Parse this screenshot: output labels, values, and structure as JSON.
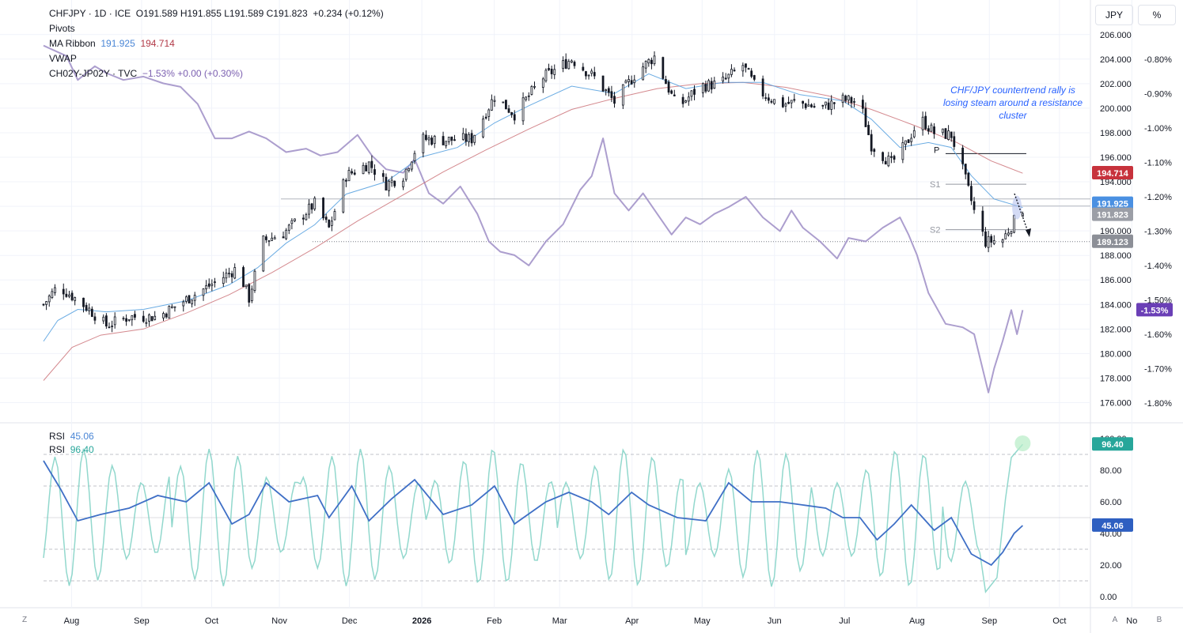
{
  "legend": {
    "symbol_line": "CHFJPY · 1D · ICE",
    "ohlc": "O191.589 H191.855 L191.589 C191.823",
    "change": "+0.234 (+0.12%)",
    "pivots": "Pivots",
    "ma_label": "MA Ribbon",
    "ma_fast": "191.925",
    "ma_slow": "194.714",
    "vwap": "VWAP",
    "spread_label": "CH02Y-JP02Y · TVC",
    "spread_vals": "−1.53%  +0.00 (+0.30%)"
  },
  "units": {
    "left": "JPY",
    "right": "%"
  },
  "annotation": "CHF/JPY countertrend rally is losing steam around a resistance cluster",
  "pivot_labels": {
    "p": "P",
    "s1": "S1",
    "s2": "S2"
  },
  "price_tags": {
    "ma_slow": "194.714",
    "ma_fast": "191.925",
    "last": "191.823",
    "level": "189.123",
    "spread": "-1.53%"
  },
  "rsi_legend": {
    "rsi1": "RSI",
    "rsi1_val": "45.06",
    "rsi2": "RSI",
    "rsi2_val": "96.40"
  },
  "rsi_tags": {
    "rsi2": "96.40",
    "rsi1": "45.06"
  },
  "bottom": {
    "left": "Z",
    "a": "A",
    "b": "B"
  },
  "colors": {
    "up": "#131722",
    "down": "#131722",
    "ma_fast": "#5ba3e0",
    "ma_slow": "#c96b72",
    "spread": "#9d8dc6",
    "rsi_fast": "#7fd1c4",
    "rsi_slow": "#3f6fc6",
    "tag_red": "#c7323c",
    "tag_blue": "#4a90e2",
    "tag_grey": "#9b9ea6",
    "tag_dark": "#8c8f97",
    "tag_purple": "#6a3fb6",
    "tag_teal": "#27a69a",
    "tag_rsi_blue": "#2e5fc1"
  },
  "chart_data": {
    "type": "line",
    "x_tick_labels": [
      "Aug",
      "Sep",
      "Oct",
      "Nov",
      "Dec",
      "2026",
      "Feb",
      "Mar",
      "Apr",
      "May",
      "Jun",
      "Jul",
      "Aug",
      "Sep",
      "Oct",
      "No"
    ],
    "price_axis": {
      "ylim": [
        175,
        206.5
      ],
      "ticks": [
        "206.000",
        "204.000",
        "202.000",
        "200.000",
        "198.000",
        "196.000",
        "194.000",
        "192.000",
        "190.000",
        "188.000",
        "186.000",
        "184.000",
        "182.000",
        "180.000",
        "178.000",
        "176.000"
      ]
    },
    "pct_axis": {
      "ylim": [
        -1.835,
        -0.71
      ],
      "ticks": [
        "-0.80%",
        "-0.90%",
        "-1.00%",
        "-1.10%",
        "-1.20%",
        "-1.30%",
        "-1.40%",
        "-1.50%",
        "-1.60%",
        "-1.70%",
        "-1.80%"
      ]
    },
    "rsi_axis": {
      "ylim": [
        -5,
        105
      ],
      "ticks": [
        "100.00",
        "80.00",
        "60.00",
        "40.00",
        "20.00",
        "0.00"
      ],
      "bands": [
        90,
        70,
        50,
        30,
        10
      ]
    },
    "price_knots": [
      [
        0,
        184
      ],
      [
        5,
        185.5
      ],
      [
        10,
        184.7
      ],
      [
        16,
        183.6
      ],
      [
        22,
        182.3
      ],
      [
        30,
        183.0
      ],
      [
        40,
        183.0
      ],
      [
        50,
        184.4
      ],
      [
        60,
        185.8
      ],
      [
        68,
        187.0
      ],
      [
        72,
        184.5
      ],
      [
        77,
        189.2
      ],
      [
        84,
        189.8
      ],
      [
        95,
        192.2
      ],
      [
        100,
        190.2
      ],
      [
        106,
        194.5
      ],
      [
        114,
        195.5
      ],
      [
        120,
        193.8
      ],
      [
        126,
        194.5
      ],
      [
        132,
        197.5
      ],
      [
        140,
        197.4
      ],
      [
        150,
        197.5
      ],
      [
        158,
        201.0
      ],
      [
        165,
        199.5
      ],
      [
        175,
        202.5
      ],
      [
        185,
        204.0
      ],
      [
        193,
        202.5
      ],
      [
        200,
        200.5
      ],
      [
        208,
        203.0
      ],
      [
        214,
        204.2
      ],
      [
        222,
        200.0
      ],
      [
        230,
        201.8
      ],
      [
        237,
        202.0
      ],
      [
        245,
        203.5
      ],
      [
        250,
        201.5
      ],
      [
        258,
        200.3
      ],
      [
        264,
        200.5
      ],
      [
        272,
        200.0
      ],
      [
        280,
        200.7
      ],
      [
        286,
        200.5
      ],
      [
        290,
        197.0
      ],
      [
        297,
        195.5
      ],
      [
        302,
        197.0
      ],
      [
        307,
        199.2
      ],
      [
        312,
        198.0
      ],
      [
        318,
        197.8
      ],
      [
        322,
        195.0
      ],
      [
        326,
        191.6
      ],
      [
        330,
        189.1
      ],
      [
        336,
        189.3
      ],
      [
        340,
        190.8
      ],
      [
        343,
        191.8
      ]
    ],
    "ma_fast_knots": [
      [
        0,
        181.0
      ],
      [
        5,
        182.7
      ],
      [
        12,
        183.6
      ],
      [
        22,
        183.4
      ],
      [
        35,
        183.6
      ],
      [
        50,
        184.3
      ],
      [
        65,
        185.6
      ],
      [
        75,
        187.0
      ],
      [
        85,
        189.0
      ],
      [
        95,
        190.5
      ],
      [
        106,
        193.0
      ],
      [
        120,
        194.0
      ],
      [
        132,
        196.0
      ],
      [
        145,
        196.8
      ],
      [
        158,
        198.8
      ],
      [
        170,
        200.2
      ],
      [
        185,
        201.8
      ],
      [
        200,
        201.2
      ],
      [
        212,
        202.8
      ],
      [
        225,
        201.6
      ],
      [
        238,
        202.1
      ],
      [
        252,
        202.1
      ],
      [
        265,
        201.1
      ],
      [
        280,
        200.6
      ],
      [
        290,
        199.1
      ],
      [
        300,
        196.8
      ],
      [
        310,
        197.2
      ],
      [
        318,
        196.8
      ],
      [
        325,
        194.5
      ],
      [
        333,
        192.6
      ],
      [
        343,
        191.9
      ]
    ],
    "ma_slow_knots": [
      [
        0,
        177.8
      ],
      [
        10,
        180.5
      ],
      [
        20,
        181.5
      ],
      [
        35,
        182.0
      ],
      [
        50,
        183.3
      ],
      [
        65,
        184.8
      ],
      [
        80,
        186.6
      ],
      [
        95,
        188.6
      ],
      [
        110,
        190.8
      ],
      [
        125,
        192.8
      ],
      [
        140,
        194.8
      ],
      [
        155,
        196.6
      ],
      [
        170,
        198.3
      ],
      [
        185,
        199.9
      ],
      [
        200,
        200.8
      ],
      [
        215,
        201.6
      ],
      [
        230,
        202.0
      ],
      [
        245,
        202.1
      ],
      [
        260,
        201.7
      ],
      [
        275,
        201.0
      ],
      [
        290,
        199.9
      ],
      [
        305,
        198.6
      ],
      [
        320,
        197.2
      ],
      [
        332,
        195.7
      ],
      [
        343,
        194.7
      ]
    ],
    "spread_knots": [
      [
        0,
        -0.76
      ],
      [
        8,
        -0.79
      ],
      [
        12,
        -0.86
      ],
      [
        18,
        -0.82
      ],
      [
        22,
        -0.84
      ],
      [
        28,
        -0.86
      ],
      [
        35,
        -0.85
      ],
      [
        42,
        -0.87
      ],
      [
        48,
        -0.88
      ],
      [
        54,
        -0.93
      ],
      [
        60,
        -1.03
      ],
      [
        66,
        -1.03
      ],
      [
        72,
        -1.01
      ],
      [
        78,
        -1.03
      ],
      [
        85,
        -1.07
      ],
      [
        92,
        -1.06
      ],
      [
        97,
        -1.08
      ],
      [
        103,
        -1.07
      ],
      [
        110,
        -1.02
      ],
      [
        115,
        -1.08
      ],
      [
        120,
        -1.12
      ],
      [
        126,
        -1.13
      ],
      [
        130,
        -1.09
      ],
      [
        135,
        -1.19
      ],
      [
        140,
        -1.22
      ],
      [
        146,
        -1.17
      ],
      [
        152,
        -1.25
      ],
      [
        156,
        -1.33
      ],
      [
        160,
        -1.36
      ],
      [
        165,
        -1.37
      ],
      [
        170,
        -1.4
      ],
      [
        176,
        -1.33
      ],
      [
        182,
        -1.28
      ],
      [
        188,
        -1.18
      ],
      [
        192,
        -1.14
      ],
      [
        196,
        -1.03
      ],
      [
        200,
        -1.19
      ],
      [
        205,
        -1.24
      ],
      [
        210,
        -1.19
      ],
      [
        215,
        -1.25
      ],
      [
        220,
        -1.31
      ],
      [
        225,
        -1.26
      ],
      [
        230,
        -1.28
      ],
      [
        235,
        -1.25
      ],
      [
        240,
        -1.23
      ],
      [
        246,
        -1.2
      ],
      [
        252,
        -1.26
      ],
      [
        258,
        -1.3
      ],
      [
        262,
        -1.24
      ],
      [
        266,
        -1.29
      ],
      [
        272,
        -1.33
      ],
      [
        278,
        -1.38
      ],
      [
        282,
        -1.32
      ],
      [
        288,
        -1.33
      ],
      [
        294,
        -1.29
      ],
      [
        300,
        -1.26
      ],
      [
        303,
        -1.31
      ],
      [
        306,
        -1.37
      ],
      [
        310,
        -1.48
      ],
      [
        316,
        -1.57
      ],
      [
        322,
        -1.58
      ],
      [
        326,
        -1.6
      ],
      [
        331,
        -1.77
      ],
      [
        333,
        -1.7
      ],
      [
        336,
        -1.62
      ],
      [
        339,
        -1.53
      ],
      [
        341,
        -1.6
      ],
      [
        343,
        -1.53
      ]
    ],
    "rsi_slow_knots": [
      [
        0,
        86
      ],
      [
        6,
        68
      ],
      [
        12,
        48
      ],
      [
        20,
        52
      ],
      [
        30,
        56
      ],
      [
        40,
        64
      ],
      [
        50,
        60
      ],
      [
        58,
        72
      ],
      [
        66,
        46
      ],
      [
        72,
        52
      ],
      [
        78,
        72
      ],
      [
        86,
        60
      ],
      [
        96,
        64
      ],
      [
        100,
        50
      ],
      [
        108,
        70
      ],
      [
        114,
        48
      ],
      [
        122,
        62
      ],
      [
        130,
        74
      ],
      [
        140,
        52
      ],
      [
        150,
        58
      ],
      [
        158,
        70
      ],
      [
        165,
        46
      ],
      [
        176,
        60
      ],
      [
        184,
        66
      ],
      [
        192,
        60
      ],
      [
        198,
        52
      ],
      [
        206,
        66
      ],
      [
        212,
        58
      ],
      [
        222,
        50
      ],
      [
        232,
        48
      ],
      [
        240,
        72
      ],
      [
        248,
        60
      ],
      [
        258,
        60
      ],
      [
        266,
        58
      ],
      [
        274,
        56
      ],
      [
        280,
        50
      ],
      [
        286,
        50
      ],
      [
        292,
        36
      ],
      [
        298,
        46
      ],
      [
        304,
        58
      ],
      [
        312,
        42
      ],
      [
        318,
        50
      ],
      [
        325,
        27
      ],
      [
        332,
        20
      ],
      [
        336,
        28
      ],
      [
        340,
        40
      ],
      [
        343,
        45
      ]
    ],
    "rsi_fast_phase": [
      0.9,
      0.55,
      0.3,
      0.75,
      0.2,
      0.6,
      0.85,
      0.4
    ],
    "rsi_tail": [
      [
        330,
        3
      ],
      [
        334,
        12
      ],
      [
        337,
        62
      ],
      [
        339,
        88
      ],
      [
        343,
        96.4
      ]
    ],
    "pivots": {
      "P": 196.3,
      "S1": 193.8,
      "S2": 190.1
    },
    "levels": {
      "last": 191.823,
      "ma_fast": 191.925,
      "ma_slow": 194.714,
      "dotted": 189.123,
      "resist": 192.6
    }
  }
}
